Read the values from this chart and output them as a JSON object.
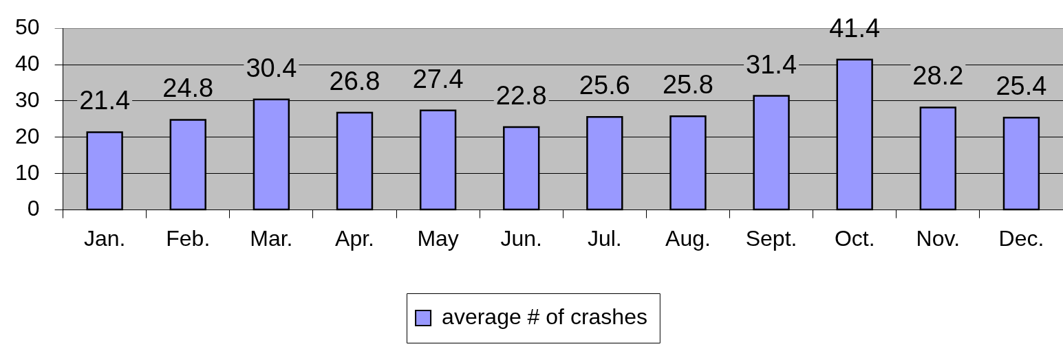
{
  "chart_data": {
    "type": "bar",
    "categories": [
      "Jan.",
      "Feb.",
      "Mar.",
      "Apr.",
      "May",
      "Jun.",
      "Jul.",
      "Aug.",
      "Sept.",
      "Oct.",
      "Nov.",
      "Dec."
    ],
    "series": [
      {
        "name": "average # of crashes",
        "color": "#9999ff",
        "values": [
          21.4,
          24.8,
          30.4,
          26.8,
          27.4,
          22.8,
          25.6,
          25.8,
          31.4,
          41.4,
          28.2,
          25.4
        ]
      }
    ],
    "ylim": [
      0,
      50
    ],
    "yticks": [
      0,
      10,
      20,
      30,
      40,
      50
    ],
    "grid": "y",
    "data_labels": true,
    "legend": "bottom"
  }
}
